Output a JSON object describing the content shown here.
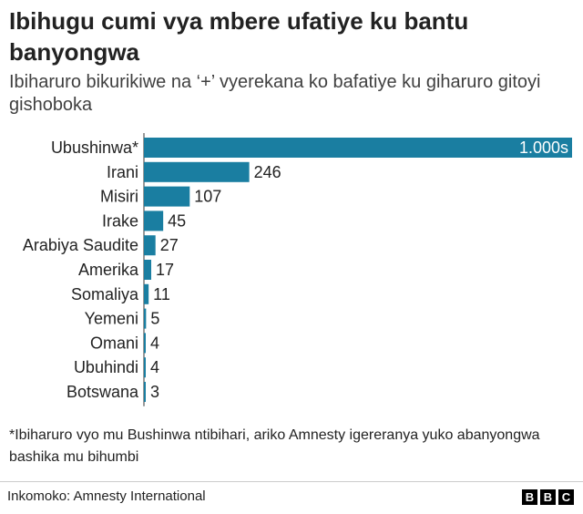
{
  "chart_data": {
    "type": "bar",
    "orientation": "horizontal",
    "title": "Ibihugu cumi vya mbere ufatiye ku bantu banyongwa",
    "subtitle": "Ibiharuro bikurikiwe na ‘+’ vyerekana ko bafatiye ku giharuro gitoyi gishoboka",
    "categories": [
      "Ubushinwa*",
      "Irani",
      "Misiri",
      "Irake",
      "Arabiya Saudite",
      "Amerika",
      "Somaliya",
      "Yemeni",
      "Omani",
      "Ubuhindi",
      "Botswana"
    ],
    "values": [
      1000,
      246,
      107,
      45,
      27,
      17,
      11,
      5,
      4,
      4,
      3
    ],
    "value_labels": [
      "1.000s",
      "246",
      "107",
      "45",
      "27",
      "17",
      "11",
      "5",
      "4",
      "4",
      "3"
    ],
    "bar_color": "#1a7ea1",
    "xlim": [
      0,
      1000
    ]
  },
  "footnote": "*Ibiharuro vyo mu Bushinwa ntibihari, ariko Amnesty igereranya yuko abanyongwa bashika mu bihumbi",
  "source": "Inkomoko: Amnesty International",
  "logo": [
    "B",
    "B",
    "C"
  ]
}
